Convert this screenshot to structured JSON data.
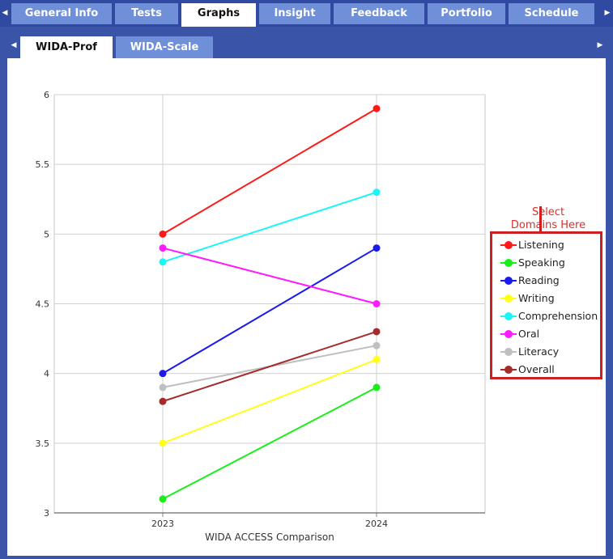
{
  "nav": {
    "tabs": [
      {
        "label": "General Info",
        "active": false
      },
      {
        "label": "Tests",
        "active": false
      },
      {
        "label": "Graphs",
        "active": true
      },
      {
        "label": "Insight",
        "active": false
      },
      {
        "label": "Feedback",
        "active": false
      },
      {
        "label": "Portfolio",
        "active": false
      },
      {
        "label": "Schedule",
        "active": false
      }
    ],
    "left_arrow": "◀",
    "right_arrow": "▶"
  },
  "subnav": {
    "tabs": [
      {
        "label": "WIDA-Prof",
        "active": true
      },
      {
        "label": "WIDA-Scale",
        "active": false
      }
    ],
    "left_arrow": "◀",
    "right_arrow": "▶"
  },
  "callout": {
    "line1": "Select",
    "line2": "Domains Here"
  },
  "chart_data": {
    "type": "line",
    "xlabel": "WIDA ACCESS Comparison",
    "ylabel": "",
    "title": "",
    "categories": [
      "2023",
      "2024"
    ],
    "ylim": [
      3,
      6
    ],
    "yticks": [
      "3",
      "3.5",
      "4",
      "4.5",
      "5",
      "5.5",
      "6"
    ],
    "grid": true,
    "legend_placement": "right",
    "series": [
      {
        "name": "Listening",
        "color": "#ff1a1a",
        "values": [
          5.0,
          5.9
        ]
      },
      {
        "name": "Speaking",
        "color": "#1aee1a",
        "values": [
          3.1,
          3.9
        ]
      },
      {
        "name": "Reading",
        "color": "#1a1aee",
        "values": [
          4.0,
          4.9
        ]
      },
      {
        "name": "Writing",
        "color": "#ffff1a",
        "values": [
          3.5,
          4.1
        ]
      },
      {
        "name": "Comprehension",
        "color": "#1af5f5",
        "values": [
          4.8,
          5.3
        ]
      },
      {
        "name": "Oral",
        "color": "#ff1aff",
        "values": [
          4.9,
          4.5
        ]
      },
      {
        "name": "Literacy",
        "color": "#bfbfbf",
        "values": [
          3.9,
          4.2
        ]
      },
      {
        "name": "Overall",
        "color": "#a52a2a",
        "values": [
          3.8,
          4.3
        ]
      }
    ]
  }
}
